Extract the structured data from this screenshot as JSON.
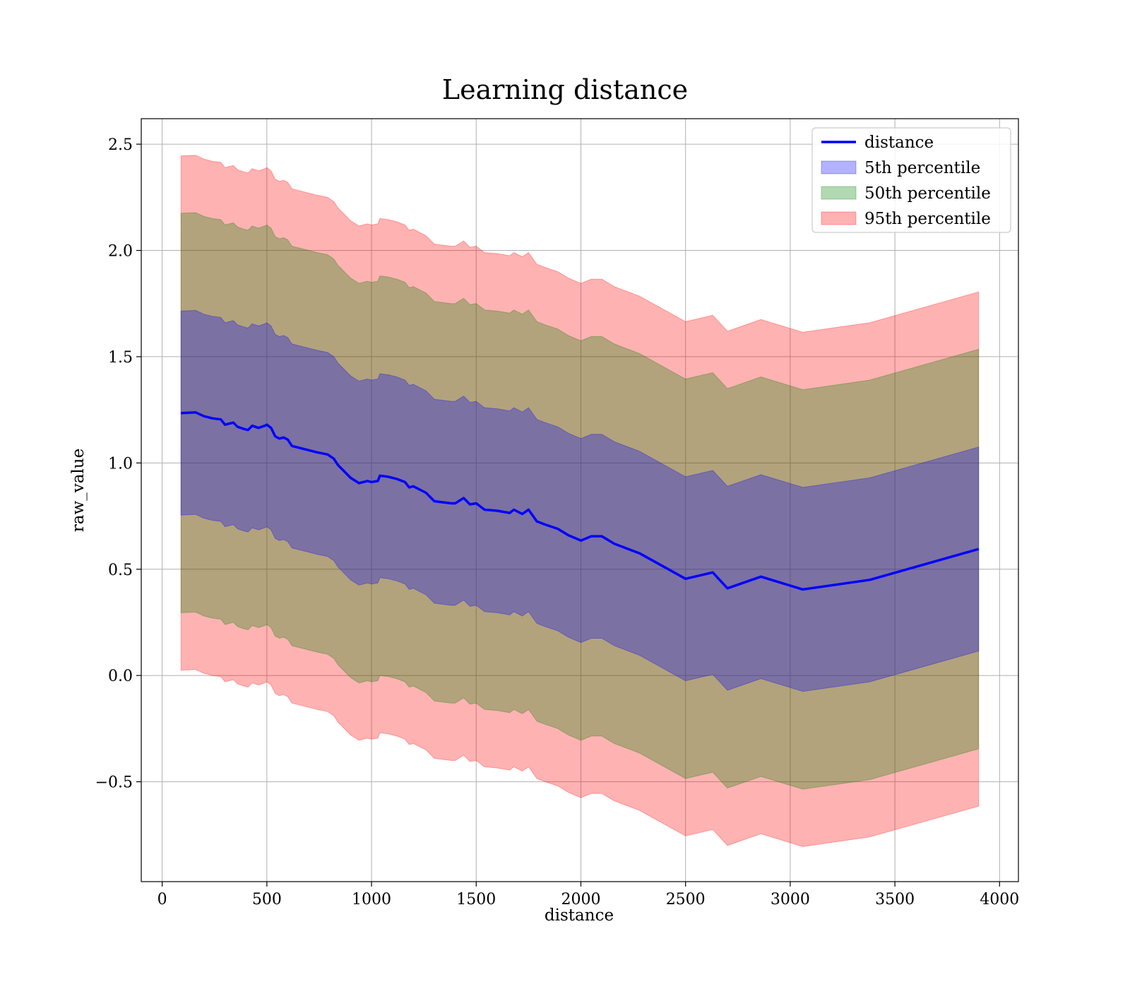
{
  "chart_data": {
    "type": "line",
    "title": "Learning distance",
    "xlabel": "distance",
    "ylabel": "raw_value",
    "xlim": [
      -100,
      4090
    ],
    "ylim": [
      -0.97,
      2.62
    ],
    "xticks": [
      0,
      500,
      1000,
      1500,
      2000,
      2500,
      3000,
      3500,
      4000
    ],
    "xtick_labels": [
      "0",
      "500",
      "1000",
      "1500",
      "2000",
      "2500",
      "3000",
      "3500",
      "4000"
    ],
    "yticks": [
      -0.5,
      0.0,
      0.5,
      1.0,
      1.5,
      2.0,
      2.5
    ],
    "ytick_labels": [
      "−0.5",
      "0.0",
      "0.5",
      "1.0",
      "1.5",
      "2.0",
      "2.5"
    ],
    "grid": true,
    "legend_position": "top-right",
    "legend": [
      {
        "label": "distance",
        "kind": "line",
        "color": "#0000ff"
      },
      {
        "label": "5th percentile",
        "kind": "patch",
        "color": "#0000ff"
      },
      {
        "label": "50th percentile",
        "kind": "patch",
        "color": "#008000"
      },
      {
        "label": "95th percentile",
        "kind": "patch",
        "color": "#ff0000"
      }
    ],
    "x": [
      90,
      160,
      200,
      240,
      280,
      300,
      340,
      360,
      390,
      410,
      430,
      460,
      490,
      500,
      520,
      540,
      560,
      580,
      600,
      620,
      660,
      700,
      740,
      790,
      820,
      840,
      860,
      900,
      940,
      980,
      1000,
      1030,
      1040,
      1080,
      1120,
      1160,
      1180,
      1200,
      1230,
      1260,
      1300,
      1340,
      1380,
      1400,
      1440,
      1470,
      1500,
      1540,
      1600,
      1660,
      1680,
      1720,
      1750,
      1790,
      1830,
      1890,
      1940,
      2000,
      2050,
      2100,
      2160,
      2280,
      2500,
      2630,
      2700,
      2860,
      3060,
      3380,
      3900
    ],
    "series": [
      {
        "name": "distance",
        "color": "#0000ff",
        "values": [
          1.235,
          1.238,
          1.22,
          1.21,
          1.205,
          1.18,
          1.19,
          1.17,
          1.16,
          1.155,
          1.175,
          1.165,
          1.175,
          1.18,
          1.165,
          1.125,
          1.115,
          1.12,
          1.11,
          1.08,
          1.07,
          1.06,
          1.05,
          1.04,
          1.02,
          0.99,
          0.97,
          0.93,
          0.905,
          0.915,
          0.91,
          0.915,
          0.94,
          0.935,
          0.925,
          0.91,
          0.885,
          0.89,
          0.875,
          0.86,
          0.82,
          0.815,
          0.81,
          0.81,
          0.835,
          0.805,
          0.81,
          0.78,
          0.775,
          0.765,
          0.78,
          0.76,
          0.78,
          0.725,
          0.71,
          0.69,
          0.66,
          0.635,
          0.655,
          0.655,
          0.62,
          0.575,
          0.455,
          0.485,
          0.41,
          0.465,
          0.405,
          0.45,
          0.595
        ]
      }
    ],
    "bands": [
      {
        "name": "95th percentile",
        "color": "#ff0000",
        "alpha": 0.3,
        "offset": 1.21
      },
      {
        "name": "50th percentile",
        "color": "#008000",
        "alpha": 0.3,
        "offset": 0.94
      },
      {
        "name": "5th percentile",
        "color": "#0000ff",
        "alpha": 0.3,
        "offset": 0.48
      }
    ]
  }
}
